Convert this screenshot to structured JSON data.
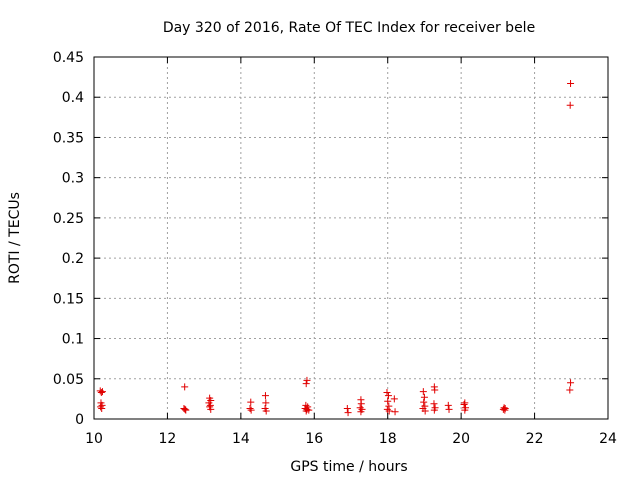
{
  "chart_data": {
    "type": "scatter",
    "title": "Day 320 of 2016, Rate Of TEC Index for receiver bele",
    "xlabel": "GPS time / hours",
    "ylabel": "ROTI / TECUs",
    "xlim": [
      10,
      24
    ],
    "ylim": [
      0,
      0.45
    ],
    "xticks": [
      10,
      12,
      14,
      16,
      18,
      20,
      22,
      24
    ],
    "xtick_labels": [
      "10",
      "12",
      "14",
      "16",
      "18",
      "20",
      "22",
      "24"
    ],
    "yticks": [
      0,
      0.05,
      0.1,
      0.15,
      0.2,
      0.25,
      0.3,
      0.35,
      0.4,
      0.45
    ],
    "ytick_labels": [
      "0",
      "0.05",
      "0.1",
      "0.15",
      "0.2",
      "0.25",
      "0.3",
      "0.35",
      "0.4",
      "0.45"
    ],
    "grid": true,
    "marker": "+",
    "color": "#e00000",
    "points": [
      [
        10.17,
        0.035
      ],
      [
        10.2,
        0.033
      ],
      [
        10.23,
        0.034
      ],
      [
        10.19,
        0.02
      ],
      [
        10.22,
        0.017
      ],
      [
        10.18,
        0.015
      ],
      [
        10.21,
        0.013
      ],
      [
        12.47,
        0.04
      ],
      [
        12.45,
        0.013
      ],
      [
        12.48,
        0.012
      ],
      [
        12.5,
        0.011
      ],
      [
        13.15,
        0.026
      ],
      [
        13.18,
        0.023
      ],
      [
        13.13,
        0.02
      ],
      [
        13.17,
        0.017
      ],
      [
        13.15,
        0.015
      ],
      [
        13.18,
        0.012
      ],
      [
        14.27,
        0.021
      ],
      [
        14.25,
        0.013
      ],
      [
        14.28,
        0.011
      ],
      [
        14.67,
        0.029
      ],
      [
        14.68,
        0.02
      ],
      [
        14.66,
        0.013
      ],
      [
        14.69,
        0.01
      ],
      [
        15.8,
        0.048
      ],
      [
        15.78,
        0.044
      ],
      [
        15.77,
        0.017
      ],
      [
        15.82,
        0.015
      ],
      [
        15.75,
        0.013
      ],
      [
        15.8,
        0.012
      ],
      [
        15.85,
        0.011
      ],
      [
        15.78,
        0.01
      ],
      [
        16.9,
        0.013
      ],
      [
        16.92,
        0.008
      ],
      [
        17.27,
        0.024
      ],
      [
        17.28,
        0.019
      ],
      [
        17.25,
        0.014
      ],
      [
        17.3,
        0.012
      ],
      [
        17.27,
        0.009
      ],
      [
        17.98,
        0.033
      ],
      [
        18.02,
        0.029
      ],
      [
        18.0,
        0.022
      ],
      [
        18.03,
        0.016
      ],
      [
        17.99,
        0.012
      ],
      [
        18.04,
        0.01
      ],
      [
        18.18,
        0.025
      ],
      [
        18.2,
        0.009
      ],
      [
        18.97,
        0.034
      ],
      [
        19.0,
        0.027
      ],
      [
        18.98,
        0.021
      ],
      [
        19.01,
        0.016
      ],
      [
        18.96,
        0.013
      ],
      [
        19.02,
        0.01
      ],
      [
        19.27,
        0.04
      ],
      [
        19.28,
        0.036
      ],
      [
        19.26,
        0.019
      ],
      [
        19.29,
        0.014
      ],
      [
        19.27,
        0.011
      ],
      [
        19.65,
        0.017
      ],
      [
        19.67,
        0.012
      ],
      [
        20.1,
        0.02
      ],
      [
        20.08,
        0.018
      ],
      [
        20.12,
        0.014
      ],
      [
        20.1,
        0.011
      ],
      [
        21.17,
        0.014
      ],
      [
        21.2,
        0.013
      ],
      [
        21.15,
        0.012
      ],
      [
        21.19,
        0.011
      ],
      [
        22.98,
        0.417
      ],
      [
        22.97,
        0.39
      ],
      [
        22.98,
        0.045
      ],
      [
        22.96,
        0.036
      ]
    ]
  }
}
